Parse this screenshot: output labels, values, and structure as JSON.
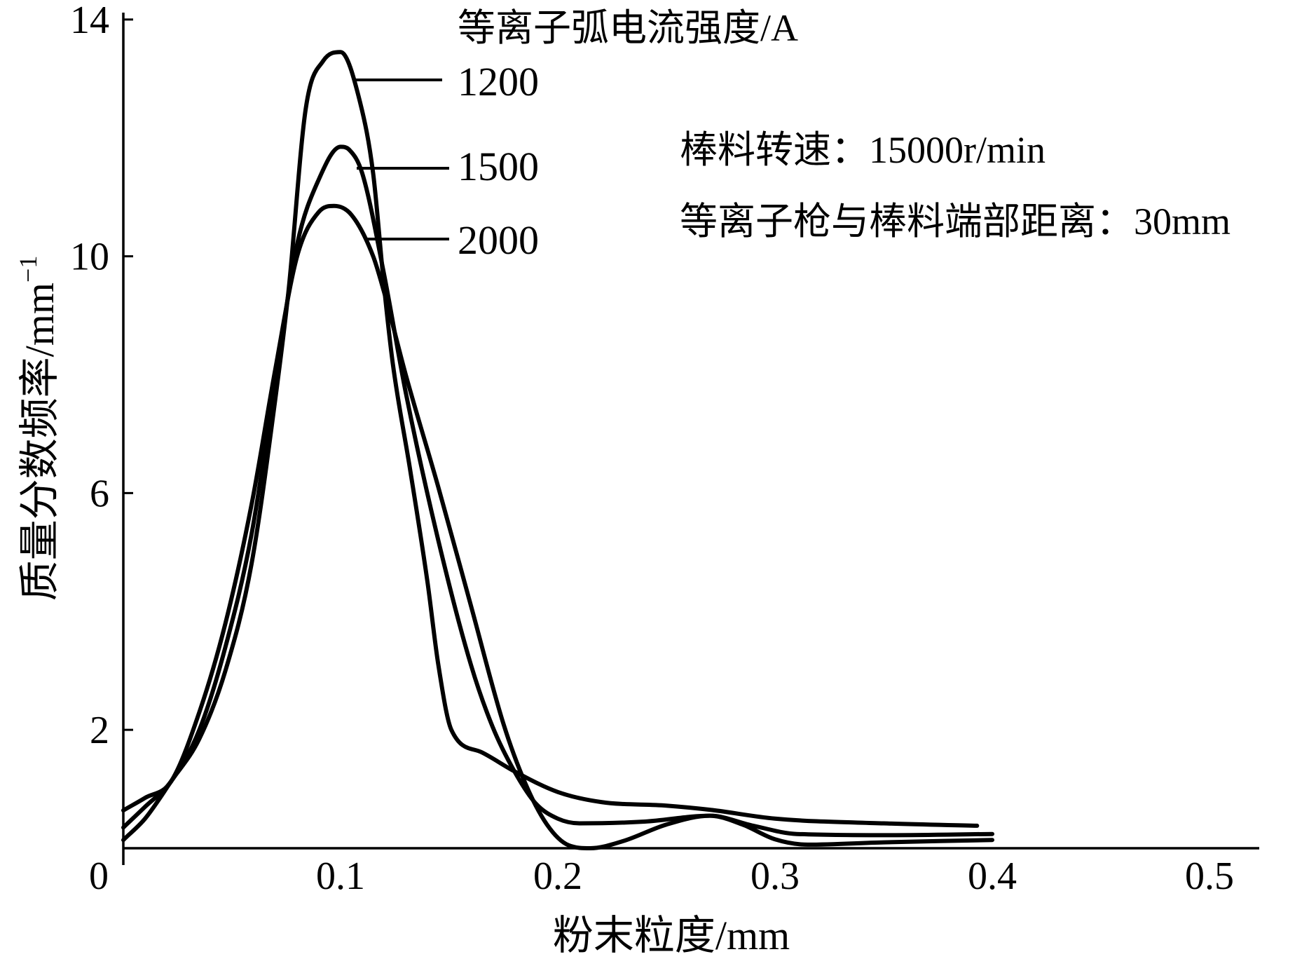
{
  "chart_data": {
    "type": "line",
    "xlabel": "粉末粒度/mm",
    "ylabel": "质量分数频率/mm",
    "ylabel_exponent": "−1",
    "xlim": [
      0,
      0.52
    ],
    "ylim": [
      0,
      14.1
    ],
    "xticks": [
      0,
      0.1,
      0.2,
      0.3,
      0.4,
      0.5
    ],
    "xtick_labels": [
      "0",
      "0.1",
      "0.2",
      "0.3",
      "0.4",
      "0.5"
    ],
    "yticks": [
      2,
      6,
      10,
      14
    ],
    "ytick_labels": [
      "2",
      "6",
      "10",
      "14"
    ],
    "grid": false,
    "legend_title": "等离子弧电流强度/A",
    "legend_placement": "top",
    "annotations": [
      "棒料转速：15000r/min",
      "等离子枪与棒料端部距离：30mm"
    ],
    "series": [
      {
        "name": "1200",
        "x": [
          0,
          0.01,
          0.022,
          0.035,
          0.047,
          0.059,
          0.07,
          0.076,
          0.084,
          0.092,
          0.1,
          0.109,
          0.115,
          0.12,
          0.124,
          0.132,
          0.14,
          0.145,
          0.151,
          0.165,
          0.18,
          0.2,
          0.22,
          0.25,
          0.27,
          0.3,
          0.35,
          0.393
        ],
        "y": [
          0.14,
          0.5,
          1.13,
          1.85,
          3.0,
          4.8,
          7.6,
          9.4,
          12.5,
          13.3,
          13.45,
          12.6,
          11.4,
          9.5,
          8.2,
          6.4,
          4.5,
          3.1,
          2.0,
          1.62,
          1.3,
          0.95,
          0.78,
          0.72,
          0.65,
          0.5,
          0.42,
          0.38
        ]
      },
      {
        "name": "1500",
        "x": [
          0,
          0.01,
          0.022,
          0.035,
          0.047,
          0.059,
          0.07,
          0.08,
          0.09,
          0.1,
          0.104,
          0.11,
          0.12,
          0.13,
          0.145,
          0.16,
          0.17,
          0.18,
          0.19,
          0.2,
          0.21,
          0.24,
          0.27,
          0.29,
          0.31,
          0.35,
          0.4
        ],
        "y": [
          0.35,
          0.7,
          1.13,
          2.0,
          3.4,
          5.3,
          7.9,
          10.2,
          11.3,
          11.85,
          11.8,
          11.4,
          9.7,
          7.7,
          5.2,
          3.1,
          2.05,
          1.3,
          0.75,
          0.5,
          0.42,
          0.45,
          0.55,
          0.38,
          0.24,
          0.22,
          0.24
        ]
      },
      {
        "name": "2000",
        "x": [
          0,
          0.01,
          0.022,
          0.035,
          0.047,
          0.059,
          0.07,
          0.08,
          0.09,
          0.097,
          0.105,
          0.115,
          0.12,
          0.13,
          0.145,
          0.16,
          0.175,
          0.185,
          0.195,
          0.205,
          0.215,
          0.23,
          0.25,
          0.27,
          0.285,
          0.3,
          0.315,
          0.35,
          0.4
        ],
        "y": [
          0.64,
          0.85,
          1.13,
          2.3,
          3.8,
          5.8,
          8.1,
          10.0,
          10.75,
          10.85,
          10.7,
          10.0,
          9.4,
          8.0,
          6.1,
          4.1,
          2.1,
          1.1,
          0.4,
          0.05,
          0.0,
          0.12,
          0.4,
          0.55,
          0.4,
          0.15,
          0.06,
          0.1,
          0.14
        ]
      }
    ]
  }
}
